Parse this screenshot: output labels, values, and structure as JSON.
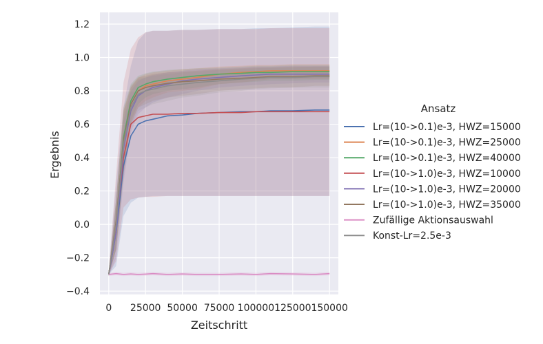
{
  "chart_data": {
    "type": "line",
    "xlabel": "Zeitschritt",
    "ylabel": "Ergebnis",
    "xlim": [
      -6000,
      156000
    ],
    "ylim": [
      -0.42,
      1.27
    ],
    "xticks": [
      0,
      25000,
      50000,
      75000,
      100000,
      125000,
      150000
    ],
    "xtick_labels": [
      "0",
      "25000",
      "50000",
      "75000",
      "100000",
      "125000",
      "150000"
    ],
    "yticks": [
      -0.4,
      -0.2,
      0.0,
      0.2,
      0.4,
      0.6,
      0.8,
      1.0,
      1.2
    ],
    "ytick_labels": [
      "−0.4",
      "−0.2",
      "0.0",
      "0.2",
      "0.4",
      "0.6",
      "0.8",
      "1.0",
      "1.2"
    ],
    "grid": true,
    "legend": {
      "title": "Ansatz",
      "placement": "right"
    },
    "x": [
      0,
      5000,
      10000,
      15000,
      20000,
      25000,
      30000,
      40000,
      50000,
      60000,
      75000,
      90000,
      100000,
      110000,
      125000,
      140000,
      150000
    ],
    "series": [
      {
        "name": "Lr=(10->0.1)e-3, HWZ=15000",
        "color": "#4c72b0",
        "values": [
          -0.3,
          -0.05,
          0.35,
          0.53,
          0.6,
          0.62,
          0.63,
          0.65,
          0.655,
          0.665,
          0.67,
          0.675,
          0.675,
          0.68,
          0.68,
          0.685,
          0.685
        ],
        "band_lower": [
          -0.3,
          -0.25,
          0.05,
          0.13,
          0.16,
          0.165,
          0.17,
          0.17,
          0.17,
          0.17,
          0.17,
          0.17,
          0.17,
          0.17,
          0.17,
          0.17,
          0.17
        ],
        "band_upper": [
          -0.28,
          0.25,
          0.7,
          0.95,
          1.1,
          1.15,
          1.16,
          1.16,
          1.165,
          1.165,
          1.17,
          1.17,
          1.175,
          1.175,
          1.18,
          1.185,
          1.185
        ]
      },
      {
        "name": "Lr=(10->0.1)e-3, HWZ=25000",
        "color": "#dd8452",
        "values": [
          -0.3,
          0.0,
          0.5,
          0.72,
          0.8,
          0.83,
          0.84,
          0.86,
          0.87,
          0.88,
          0.9,
          0.91,
          0.915,
          0.92,
          0.92,
          0.92,
          0.92
        ],
        "band_lower": [
          -0.31,
          -0.15,
          0.3,
          0.6,
          0.7,
          0.74,
          0.76,
          0.79,
          0.8,
          0.81,
          0.84,
          0.85,
          0.86,
          0.87,
          0.87,
          0.87,
          0.87
        ],
        "band_upper": [
          -0.29,
          0.15,
          0.68,
          0.82,
          0.88,
          0.9,
          0.91,
          0.92,
          0.93,
          0.935,
          0.945,
          0.95,
          0.955,
          0.955,
          0.96,
          0.96,
          0.96
        ]
      },
      {
        "name": "Lr=(10->0.1)e-3, HWZ=40000",
        "color": "#55a868",
        "values": [
          -0.3,
          0.0,
          0.52,
          0.74,
          0.82,
          0.84,
          0.855,
          0.87,
          0.88,
          0.89,
          0.9,
          0.905,
          0.91,
          0.91,
          0.915,
          0.915,
          0.915
        ],
        "band_lower": [
          -0.31,
          -0.15,
          0.32,
          0.62,
          0.72,
          0.76,
          0.78,
          0.8,
          0.81,
          0.82,
          0.84,
          0.85,
          0.855,
          0.86,
          0.86,
          0.865,
          0.865
        ],
        "band_upper": [
          -0.29,
          0.15,
          0.7,
          0.84,
          0.89,
          0.905,
          0.915,
          0.925,
          0.93,
          0.935,
          0.94,
          0.945,
          0.95,
          0.95,
          0.955,
          0.955,
          0.955
        ]
      },
      {
        "name": "Lr=(10->1.0)e-3, HWZ=10000",
        "color": "#c44e52",
        "values": [
          -0.3,
          -0.02,
          0.4,
          0.6,
          0.64,
          0.65,
          0.66,
          0.66,
          0.665,
          0.665,
          0.67,
          0.67,
          0.675,
          0.675,
          0.675,
          0.675,
          0.675
        ],
        "band_lower": [
          -0.3,
          -0.22,
          0.1,
          0.15,
          0.16,
          0.165,
          0.165,
          0.17,
          0.17,
          0.17,
          0.17,
          0.17,
          0.17,
          0.17,
          0.17,
          0.17,
          0.17
        ],
        "band_upper": [
          -0.28,
          0.3,
          0.85,
          1.05,
          1.12,
          1.15,
          1.16,
          1.16,
          1.165,
          1.165,
          1.17,
          1.17,
          1.17,
          1.175,
          1.175,
          1.175,
          1.175
        ]
      },
      {
        "name": "Lr=(10->1.0)e-3, HWZ=20000",
        "color": "#8172b3",
        "values": [
          -0.3,
          -0.05,
          0.45,
          0.68,
          0.77,
          0.8,
          0.82,
          0.84,
          0.86,
          0.87,
          0.88,
          0.89,
          0.895,
          0.9,
          0.9,
          0.9,
          0.9
        ],
        "band_lower": [
          -0.31,
          -0.2,
          0.25,
          0.55,
          0.66,
          0.7,
          0.73,
          0.76,
          0.78,
          0.8,
          0.82,
          0.83,
          0.835,
          0.84,
          0.845,
          0.85,
          0.85
        ],
        "band_upper": [
          -0.29,
          0.12,
          0.62,
          0.8,
          0.86,
          0.88,
          0.895,
          0.91,
          0.92,
          0.93,
          0.935,
          0.94,
          0.945,
          0.945,
          0.95,
          0.95,
          0.95
        ]
      },
      {
        "name": "Lr=(10->1.0)e-3, HWZ=35000",
        "color": "#937860",
        "values": [
          -0.3,
          0.02,
          0.5,
          0.72,
          0.8,
          0.82,
          0.83,
          0.845,
          0.855,
          0.86,
          0.87,
          0.875,
          0.88,
          0.885,
          0.885,
          0.89,
          0.89
        ],
        "band_lower": [
          -0.31,
          -0.15,
          0.3,
          0.6,
          0.7,
          0.72,
          0.74,
          0.76,
          0.77,
          0.78,
          0.8,
          0.81,
          0.815,
          0.82,
          0.82,
          0.83,
          0.83
        ],
        "band_upper": [
          -0.29,
          0.15,
          0.68,
          0.83,
          0.88,
          0.89,
          0.9,
          0.91,
          0.915,
          0.92,
          0.93,
          0.935,
          0.94,
          0.94,
          0.945,
          0.945,
          0.945
        ]
      },
      {
        "name": "Zufällige Aktionsauswahl",
        "color": "#da8bc3",
        "values": [
          -0.3,
          -0.295,
          -0.3,
          -0.297,
          -0.3,
          -0.298,
          -0.295,
          -0.3,
          -0.297,
          -0.3,
          -0.3,
          -0.297,
          -0.3,
          -0.295,
          -0.297,
          -0.3,
          -0.295
        ],
        "band_lower": [
          -0.31,
          -0.305,
          -0.31,
          -0.307,
          -0.31,
          -0.308,
          -0.305,
          -0.31,
          -0.307,
          -0.31,
          -0.31,
          -0.307,
          -0.31,
          -0.305,
          -0.307,
          -0.31,
          -0.305
        ],
        "band_upper": [
          -0.29,
          -0.285,
          -0.29,
          -0.287,
          -0.29,
          -0.288,
          -0.285,
          -0.29,
          -0.287,
          -0.29,
          -0.29,
          -0.287,
          -0.29,
          -0.285,
          -0.287,
          -0.29,
          -0.285
        ]
      },
      {
        "name": "Konst-Lr=2.5e-3",
        "color": "#8c8c8c",
        "values": [
          -0.3,
          0.0,
          0.48,
          0.7,
          0.78,
          0.8,
          0.81,
          0.83,
          0.84,
          0.85,
          0.86,
          0.87,
          0.875,
          0.88,
          0.88,
          0.885,
          0.885
        ],
        "band_lower": [
          -0.31,
          -0.15,
          0.28,
          0.58,
          0.68,
          0.7,
          0.72,
          0.74,
          0.76,
          0.77,
          0.79,
          0.8,
          0.81,
          0.815,
          0.82,
          0.82,
          0.82
        ],
        "band_upper": [
          -0.29,
          0.15,
          0.66,
          0.82,
          0.87,
          0.88,
          0.89,
          0.9,
          0.91,
          0.915,
          0.925,
          0.93,
          0.935,
          0.94,
          0.94,
          0.945,
          0.945
        ]
      }
    ]
  }
}
